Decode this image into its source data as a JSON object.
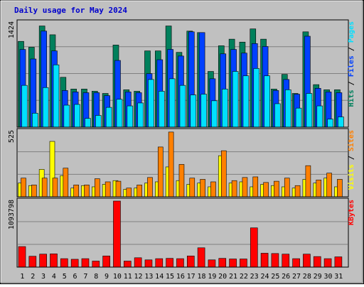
{
  "title": "Daily usage for May 2024",
  "colors": {
    "background": "#c0c0c0",
    "hits": "#00805c",
    "files": "#0040ff",
    "pages": "#00e0ff",
    "visits": "#ffff00",
    "sites": "#ff8000",
    "kbytes": "#ff0000",
    "weekend_label": "#00805c"
  },
  "chart_data": [
    {
      "type": "bar",
      "panel": "hits-files-pages",
      "max_label": "1424",
      "right_label": [
        "Pages",
        "Files",
        "Hits"
      ],
      "ylim": [
        0,
        1424
      ],
      "categories": [
        "1",
        "2",
        "3",
        "4",
        "5",
        "6",
        "7",
        "8",
        "9",
        "10",
        "11",
        "12",
        "13",
        "14",
        "15",
        "16",
        "17",
        "18",
        "19",
        "20",
        "21",
        "22",
        "23",
        "24",
        "25",
        "26",
        "27",
        "28",
        "29",
        "30",
        "31"
      ],
      "weekend": [
        "4",
        "5",
        "11",
        "12",
        "18",
        "19",
        "25",
        "26"
      ],
      "series": [
        {
          "name": "Hits",
          "values": [
            1170,
            1090,
            1380,
            1260,
            680,
            520,
            520,
            490,
            460,
            1120,
            510,
            490,
            1040,
            1040,
            1380,
            1020,
            1310,
            1290,
            760,
            1110,
            1200,
            1160,
            1340,
            1200,
            520,
            720,
            460,
            1300,
            580,
            510,
            510
          ]
        },
        {
          "name": "Files",
          "values": [
            1060,
            930,
            1310,
            1040,
            500,
            480,
            470,
            470,
            430,
            910,
            480,
            470,
            730,
            920,
            1060,
            970,
            1300,
            1290,
            660,
            1000,
            1060,
            1010,
            1140,
            1100,
            500,
            650,
            450,
            1240,
            530,
            480,
            470
          ]
        },
        {
          "name": "Pages",
          "values": [
            570,
            190,
            540,
            850,
            300,
            310,
            120,
            160,
            270,
            380,
            290,
            330,
            650,
            490,
            660,
            570,
            440,
            450,
            360,
            520,
            760,
            700,
            800,
            700,
            320,
            510,
            260,
            460,
            290,
            110,
            140
          ]
        }
      ]
    },
    {
      "type": "bar",
      "panel": "visits-sites",
      "max_label": "525",
      "right_label": [
        "Sites",
        "Visits"
      ],
      "ylim": [
        0,
        525
      ],
      "categories": [
        "1",
        "2",
        "3",
        "4",
        "5",
        "6",
        "7",
        "8",
        "9",
        "10",
        "11",
        "12",
        "13",
        "14",
        "15",
        "16",
        "17",
        "18",
        "19",
        "20",
        "21",
        "22",
        "23",
        "24",
        "25",
        "26",
        "27",
        "28",
        "29",
        "30",
        "31"
      ],
      "series": [
        {
          "name": "Visits",
          "values": [
            110,
            90,
            220,
            445,
            170,
            70,
            90,
            80,
            100,
            130,
            60,
            70,
            110,
            120,
            240,
            130,
            100,
            110,
            80,
            330,
            110,
            120,
            80,
            100,
            90,
            80,
            70,
            140,
            110,
            150,
            80
          ]
        },
        {
          "name": "Sites",
          "values": [
            150,
            95,
            150,
            150,
            230,
            95,
            95,
            145,
            120,
            125,
            70,
            95,
            155,
            400,
            520,
            260,
            150,
            140,
            120,
            370,
            130,
            155,
            160,
            115,
            125,
            150,
            90,
            250,
            135,
            190,
            140
          ]
        }
      ]
    },
    {
      "type": "bar",
      "panel": "kbytes",
      "max_label": "1093798",
      "right_label": [
        "KBytes"
      ],
      "ylim": [
        0,
        1093798
      ],
      "categories": [
        "1",
        "2",
        "3",
        "4",
        "5",
        "6",
        "7",
        "8",
        "9",
        "10",
        "11",
        "12",
        "13",
        "14",
        "15",
        "16",
        "17",
        "18",
        "19",
        "20",
        "21",
        "22",
        "23",
        "24",
        "25",
        "26",
        "27",
        "28",
        "29",
        "30",
        "31"
      ],
      "series": [
        {
          "name": "KBytes",
          "values": [
            340000,
            180000,
            215000,
            220000,
            140000,
            130000,
            140000,
            100000,
            185000,
            1093798,
            100000,
            155000,
            120000,
            140000,
            145000,
            140000,
            185000,
            320000,
            120000,
            145000,
            135000,
            135000,
            650000,
            230000,
            225000,
            215000,
            140000,
            215000,
            175000,
            140000,
            170000
          ]
        }
      ]
    }
  ]
}
